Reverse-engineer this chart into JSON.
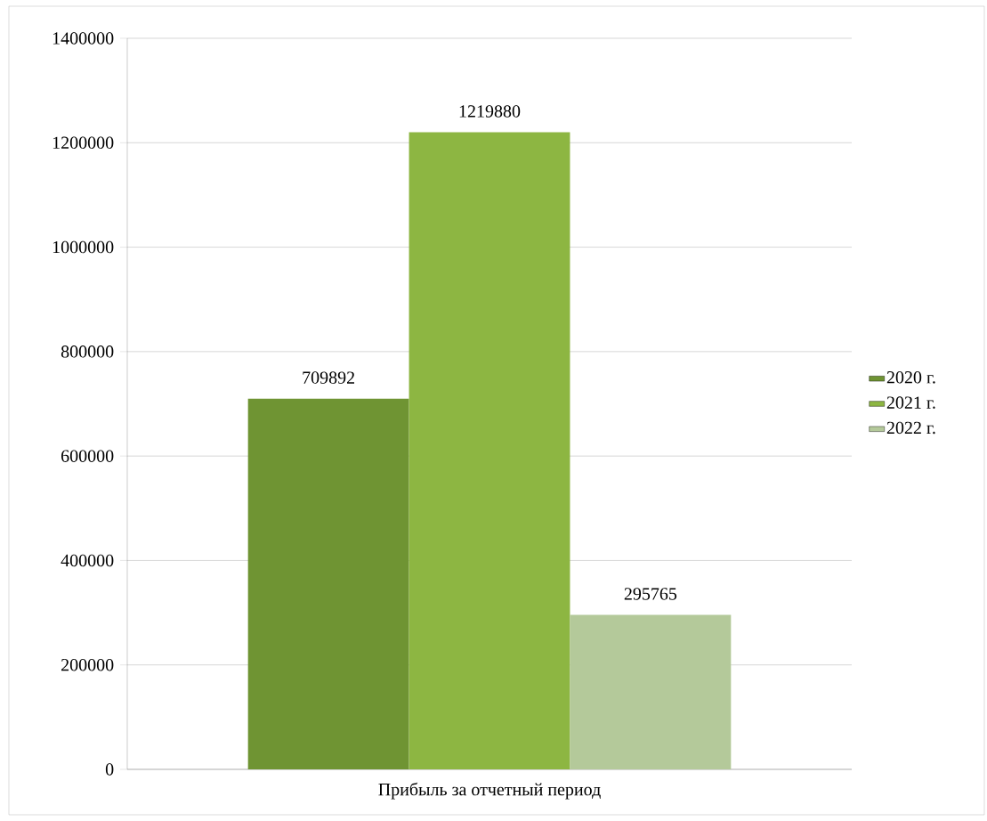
{
  "chart_data": {
    "type": "bar",
    "categories": [
      "Прибыль за отчетный период"
    ],
    "series": [
      {
        "name": "2020 г.",
        "color": "#6f9433",
        "values": [
          709892
        ]
      },
      {
        "name": "2021 г.",
        "color": "#8db642",
        "values": [
          1219880
        ]
      },
      {
        "name": "2022 г.",
        "color": "#b4c99a",
        "values": [
          295765
        ]
      }
    ],
    "ylim": [
      0,
      1400000
    ],
    "yticks": [
      0,
      200000,
      400000,
      600000,
      800000,
      1000000,
      1200000,
      1400000
    ],
    "grid": "y",
    "legend": "right",
    "data_labels": true
  }
}
